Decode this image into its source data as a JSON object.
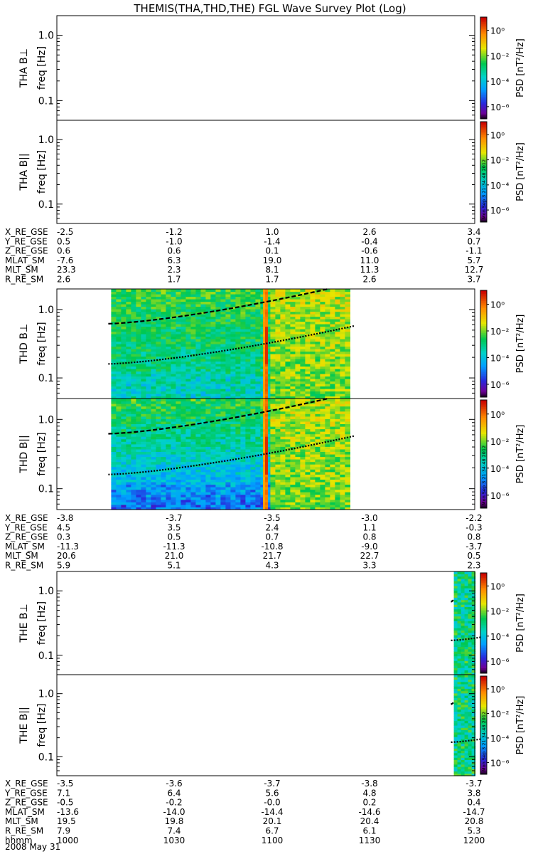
{
  "title": "THEMIS(THA,THD,THE) FGL Wave Survey Plot (Log)",
  "date_label": "2008 May 31",
  "colorbar": {
    "label": "PSD [nT²/Hz]",
    "ticks": [
      "10⁰",
      "10⁻²",
      "10⁻⁴",
      "10⁻⁶"
    ],
    "stamp": "Mon Sep 3 21:34:48 2012"
  },
  "chart_data": [
    {
      "type": "heatmap",
      "panel": "tha-bperp",
      "ylabel": "THA B⊥",
      "yunit": "freq [Hz]",
      "scale": "log",
      "ylim": [
        0.05,
        2.0
      ],
      "y_ticks": [
        "1.0",
        "0.1"
      ],
      "data": "blank",
      "fce_lines": []
    },
    {
      "type": "heatmap",
      "panel": "tha-bpar",
      "ylabel": "THA B||",
      "yunit": "freq [Hz]",
      "scale": "log",
      "ylim": [
        0.05,
        2.0
      ],
      "y_ticks": [
        "1.0",
        "0.1"
      ],
      "data": "blank",
      "fce_lines": []
    },
    {
      "type": "heatmap",
      "panel": "thd-bperp",
      "ylabel": "THD B⊥",
      "yunit": "freq [Hz]",
      "scale": "log",
      "ylim": [
        0.05,
        2.0
      ],
      "y_ticks": [
        "1.0",
        "0.1"
      ],
      "data_time_range": [
        1026,
        1140
      ],
      "enhancement_time": 1100,
      "fce_lines": [
        {
          "style": "dashed",
          "start": 0.62,
          "end": 2.0
        },
        {
          "style": "dotted",
          "start": 0.16,
          "end": 0.58
        }
      ]
    },
    {
      "type": "heatmap",
      "panel": "thd-bpar",
      "ylabel": "THD B||",
      "yunit": "freq [Hz]",
      "scale": "log",
      "ylim": [
        0.05,
        2.0
      ],
      "y_ticks": [
        "1.0",
        "0.1"
      ],
      "data_time_range": [
        1026,
        1140
      ],
      "enhancement_time": 1100,
      "fce_lines": [
        {
          "style": "dashed",
          "start": 0.62,
          "end": 2.0
        },
        {
          "style": "dotted",
          "start": 0.16,
          "end": 0.58
        }
      ]
    },
    {
      "type": "heatmap",
      "panel": "the-bperp",
      "ylabel": "THE B⊥",
      "yunit": "freq [Hz]",
      "scale": "log",
      "ylim": [
        0.05,
        2.0
      ],
      "y_ticks": [
        "1.0",
        "0.1"
      ],
      "data_time_range": [
        1190,
        1200
      ],
      "fce_lines": [
        {
          "style": "dashed",
          "start": 0.68,
          "end": 0.72
        },
        {
          "style": "dotted",
          "start": 0.17,
          "end": 0.19
        }
      ]
    },
    {
      "type": "heatmap",
      "panel": "the-bpar",
      "ylabel": "THE B||",
      "yunit": "freq [Hz]",
      "scale": "log",
      "ylim": [
        0.05,
        2.0
      ],
      "y_ticks": [
        "1.0",
        "0.1"
      ],
      "data_time_range": [
        1190,
        1200
      ],
      "fce_lines": [
        {
          "style": "dashed",
          "start": 0.68,
          "end": 0.72
        },
        {
          "style": "dotted",
          "start": 0.17,
          "end": 0.19
        }
      ]
    }
  ],
  "ephemeris": [
    {
      "probe": "THA",
      "rows": [
        {
          "label": "X_RE_GSE",
          "values": [
            "-2.5",
            "-1.2",
            "1.0",
            "2.6",
            "3.4"
          ]
        },
        {
          "label": "Y_RE_GSE",
          "values": [
            "0.5",
            "-1.0",
            "-1.4",
            "-0.4",
            "0.7"
          ]
        },
        {
          "label": "Z_RE_GSE",
          "values": [
            "0.6",
            "0.6",
            "0.1",
            "-0.6",
            "-1.1"
          ]
        },
        {
          "label": "MLAT_SM",
          "values": [
            "-7.6",
            "6.3",
            "19.0",
            "11.0",
            "5.7"
          ]
        },
        {
          "label": "MLT_SM",
          "values": [
            "23.3",
            "2.3",
            "8.1",
            "11.3",
            "12.7"
          ]
        },
        {
          "label": "R_RE_SM",
          "values": [
            "2.6",
            "1.7",
            "1.7",
            "2.6",
            "3.7"
          ]
        }
      ]
    },
    {
      "probe": "THD",
      "rows": [
        {
          "label": "X_RE_GSE",
          "values": [
            "-3.8",
            "-3.7",
            "-3.5",
            "-3.0",
            "-2.2"
          ]
        },
        {
          "label": "Y_RE_GSE",
          "values": [
            "4.5",
            "3.5",
            "2.4",
            "1.1",
            "-0.3"
          ]
        },
        {
          "label": "Z_RE_GSE",
          "values": [
            "0.3",
            "0.5",
            "0.7",
            "0.8",
            "0.8"
          ]
        },
        {
          "label": "MLAT_SM",
          "values": [
            "-11.3",
            "-11.3",
            "-10.8",
            "-9.0",
            "-3.7"
          ]
        },
        {
          "label": "MLT_SM",
          "values": [
            "20.6",
            "21.0",
            "21.7",
            "22.7",
            "0.5"
          ]
        },
        {
          "label": "R_RE_SM",
          "values": [
            "5.9",
            "5.1",
            "4.3",
            "3.3",
            "2.3"
          ]
        }
      ]
    },
    {
      "probe": "THE",
      "rows": [
        {
          "label": "X_RE_GSE",
          "values": [
            "-3.5",
            "-3.6",
            "-3.7",
            "-3.8",
            "-3.7"
          ]
        },
        {
          "label": "Y_RE_GSE",
          "values": [
            "7.1",
            "6.4",
            "5.6",
            "4.8",
            "3.8"
          ]
        },
        {
          "label": "Z_RE_GSE",
          "values": [
            "-0.5",
            "-0.2",
            "-0.0",
            "0.2",
            "0.4"
          ]
        },
        {
          "label": "MLAT_SM",
          "values": [
            "-13.6",
            "-14.0",
            "-14.4",
            "-14.6",
            "-14.7"
          ]
        },
        {
          "label": "MLT_SM",
          "values": [
            "19.5",
            "19.8",
            "20.1",
            "20.4",
            "20.8"
          ]
        },
        {
          "label": "R_RE_SM",
          "values": [
            "7.9",
            "7.4",
            "6.7",
            "6.1",
            "5.3"
          ]
        },
        {
          "label": "hhmm",
          "values": [
            "1000",
            "1030",
            "1100",
            "1130",
            "1200"
          ]
        }
      ]
    }
  ]
}
